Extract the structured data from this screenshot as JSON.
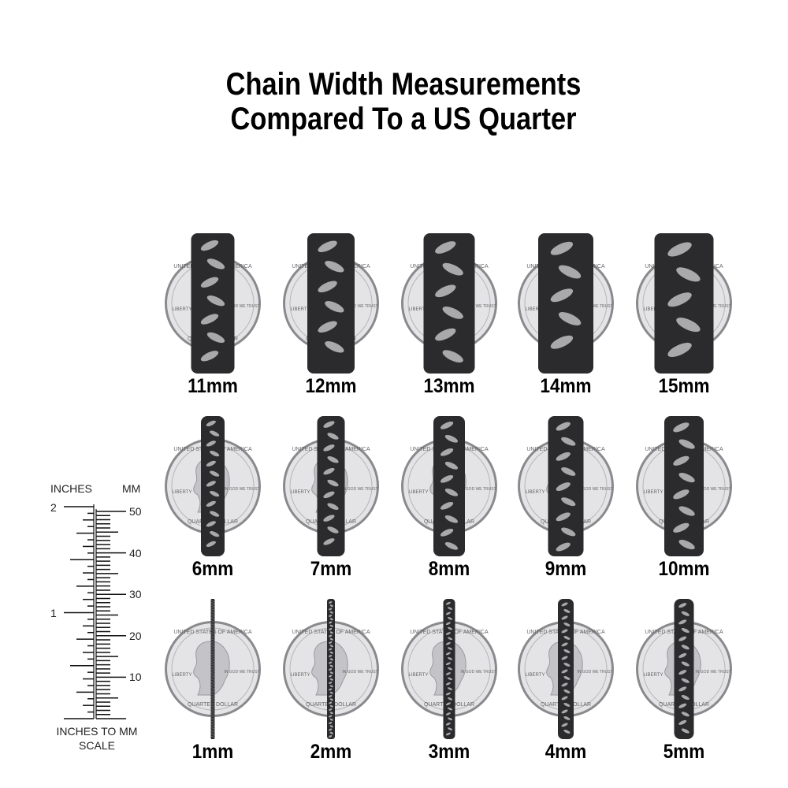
{
  "title": {
    "line1": "Chain Width Measurements",
    "line2": "Compared To a US Quarter"
  },
  "rows": [
    {
      "chains": [
        {
          "label": "11mm",
          "width_mm": 11
        },
        {
          "label": "12mm",
          "width_mm": 12
        },
        {
          "label": "13mm",
          "width_mm": 13
        },
        {
          "label": "14mm",
          "width_mm": 14
        },
        {
          "label": "15mm",
          "width_mm": 15
        }
      ]
    },
    {
      "chains": [
        {
          "label": "6mm",
          "width_mm": 6
        },
        {
          "label": "7mm",
          "width_mm": 7
        },
        {
          "label": "8mm",
          "width_mm": 8
        },
        {
          "label": "9mm",
          "width_mm": 9
        },
        {
          "label": "10mm",
          "width_mm": 10
        }
      ]
    },
    {
      "chains": [
        {
          "label": "1mm",
          "width_mm": 1
        },
        {
          "label": "2mm",
          "width_mm": 2
        },
        {
          "label": "3mm",
          "width_mm": 3
        },
        {
          "label": "4mm",
          "width_mm": 4
        },
        {
          "label": "5mm",
          "width_mm": 5
        }
      ]
    }
  ],
  "coin": {
    "top_text": "UNITED STATES OF AMERICA",
    "left_text": "LIBERTY",
    "right_text": "IN GOD WE TRUST",
    "bottom_text": "QUARTER DOLLAR"
  },
  "ruler": {
    "inches_label": "INCHES",
    "mm_label": "MM",
    "inch_ticks": [
      "2",
      "1"
    ],
    "mm_ticks": [
      "50",
      "40",
      "30",
      "20",
      "10"
    ],
    "caption_line1": "INCHES TO MM",
    "caption_line2": "SCALE"
  },
  "colors": {
    "chain": "#2b2b2d",
    "chain_highlight": "#c9c9cc",
    "coin": "#e4e4e6",
    "coin_edge": "#8a8a8e"
  }
}
